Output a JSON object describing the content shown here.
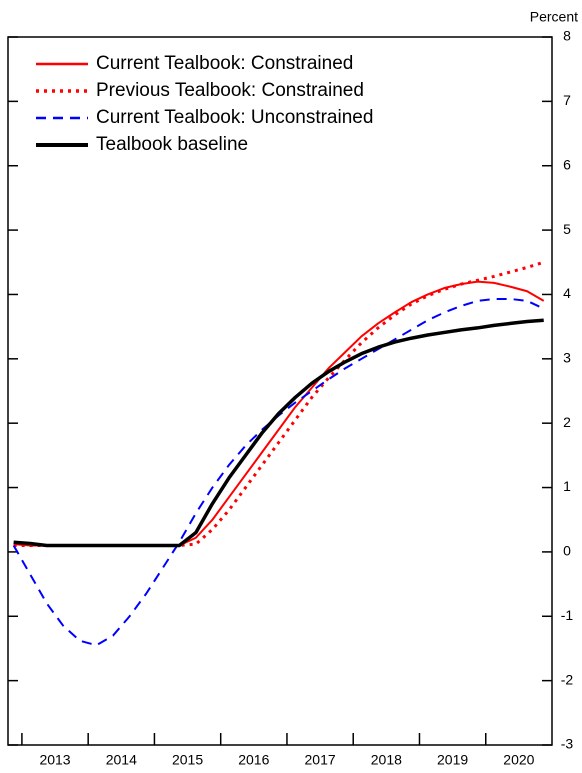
{
  "chart_data": {
    "type": "line",
    "y_label": "Percent",
    "x": [
      2012.875,
      2013.125,
      2013.375,
      2013.625,
      2013.875,
      2014.125,
      2014.375,
      2014.625,
      2014.875,
      2015.125,
      2015.375,
      2015.625,
      2015.875,
      2016.125,
      2016.375,
      2016.625,
      2016.875,
      2017.125,
      2017.375,
      2017.625,
      2017.875,
      2018.125,
      2018.375,
      2018.625,
      2018.875,
      2019.125,
      2019.375,
      2019.625,
      2019.875,
      2020.125,
      2020.375,
      2020.625,
      2020.875
    ],
    "series": [
      {
        "name": "Current Tealbook: Constrained",
        "color": "#ff0000",
        "linestyle": "solid",
        "values": [
          0.12,
          0.1,
          0.1,
          0.1,
          0.1,
          0.1,
          0.1,
          0.1,
          0.1,
          0.1,
          0.1,
          0.22,
          0.5,
          0.85,
          1.2,
          1.55,
          1.9,
          2.25,
          2.55,
          2.85,
          3.1,
          3.35,
          3.55,
          3.72,
          3.88,
          4.0,
          4.1,
          4.16,
          4.2,
          4.18,
          4.12,
          4.05,
          3.9
        ]
      },
      {
        "name": "Previous Tealbook: Constrained",
        "color": "#ff0000",
        "linestyle": "dotted",
        "values": [
          0.1,
          0.1,
          0.1,
          0.1,
          0.1,
          0.1,
          0.1,
          0.1,
          0.1,
          0.1,
          0.1,
          0.12,
          0.35,
          0.65,
          1.0,
          1.35,
          1.7,
          2.05,
          2.4,
          2.7,
          2.98,
          3.25,
          3.48,
          3.68,
          3.85,
          3.98,
          4.08,
          4.16,
          4.22,
          4.28,
          4.35,
          4.42,
          4.5
        ]
      },
      {
        "name": "Current Tealbook: Unconstrained",
        "color": "#0000ff",
        "linestyle": "dashed",
        "values": [
          0.1,
          -0.35,
          -0.8,
          -1.15,
          -1.38,
          -1.45,
          -1.3,
          -1.0,
          -0.65,
          -0.25,
          0.15,
          0.6,
          1.0,
          1.35,
          1.65,
          1.9,
          2.12,
          2.32,
          2.5,
          2.68,
          2.85,
          3.0,
          3.15,
          3.3,
          3.45,
          3.6,
          3.72,
          3.82,
          3.9,
          3.93,
          3.93,
          3.9,
          3.78
        ]
      },
      {
        "name": "Tealbook baseline",
        "color": "#000000",
        "linestyle": "solid-thick",
        "values": [
          0.15,
          0.13,
          0.1,
          0.1,
          0.1,
          0.1,
          0.1,
          0.1,
          0.1,
          0.1,
          0.1,
          0.3,
          0.75,
          1.15,
          1.5,
          1.85,
          2.15,
          2.4,
          2.62,
          2.8,
          2.95,
          3.08,
          3.18,
          3.26,
          3.32,
          3.37,
          3.41,
          3.45,
          3.48,
          3.52,
          3.55,
          3.58,
          3.6
        ]
      }
    ],
    "xlim": [
      2012.79,
      2021
    ],
    "xticks": [
      2013,
      2014,
      2015,
      2016,
      2017,
      2018,
      2019,
      2020
    ],
    "ylim": [
      -3,
      8
    ],
    "yticks": [
      -3,
      -2,
      -1,
      0,
      1,
      2,
      3,
      4,
      5,
      6,
      7,
      8
    ],
    "legend": "upper-left"
  }
}
